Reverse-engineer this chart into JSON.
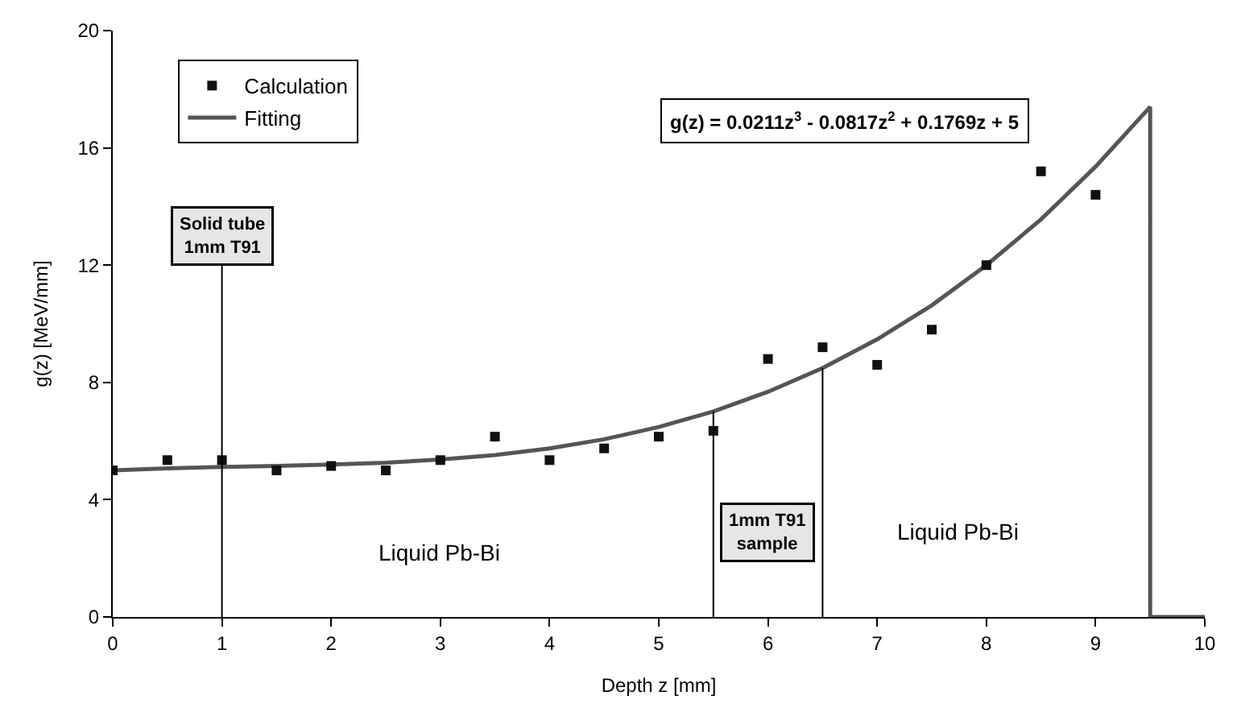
{
  "chart_data": {
    "type": "scatter",
    "xlabel": "Depth z [mm]",
    "ylabel": "g(z) [MeV/mm]",
    "xlim": [
      0,
      10
    ],
    "xticks": [
      0,
      1,
      2,
      3,
      4,
      5,
      6,
      7,
      8,
      9,
      10
    ],
    "ylim": [
      0,
      20
    ],
    "yticks": [
      0,
      4,
      8,
      12,
      16,
      20
    ],
    "legend": "top left",
    "series": [
      {
        "name": "Calculation",
        "marker": "square",
        "color": "#111111",
        "x": [
          0,
          0.5,
          1,
          1.5,
          2,
          2.5,
          3,
          3.5,
          4,
          4.5,
          5,
          5.5,
          6,
          6.5,
          7,
          7.5,
          8,
          8.5,
          9
        ],
        "values": [
          5.0,
          5.35,
          5.35,
          5.0,
          5.15,
          5.0,
          5.35,
          6.15,
          5.35,
          5.75,
          6.15,
          6.35,
          8.8,
          9.2,
          8.6,
          9.8,
          12.0,
          15.2,
          14.4
        ]
      },
      {
        "name": "Fitting",
        "type": "line",
        "marker": "none",
        "line_style": "solid",
        "color": "#555555",
        "x": [
          0,
          0.5,
          1,
          1.5,
          2,
          2.5,
          3,
          3.5,
          4,
          4.5,
          5,
          5.5,
          6,
          6.5,
          7,
          7.5,
          8,
          8.5,
          9,
          9.5,
          9.5,
          10
        ],
        "values": [
          5.0,
          5.07,
          5.12,
          5.15,
          5.2,
          5.26,
          5.37,
          5.52,
          5.75,
          6.06,
          6.48,
          7.01,
          7.68,
          8.49,
          9.47,
          10.63,
          12.0,
          13.56,
          15.36,
          17.4,
          0,
          0
        ]
      }
    ],
    "ref_lines": [
      {
        "axis": "x",
        "value": 1,
        "label": "Solid tube\n1mm T91",
        "color": "#000000"
      },
      {
        "axis": "x",
        "value": 5.5,
        "color": "#000000"
      },
      {
        "axis": "x",
        "value": 6.5,
        "color": "#000000"
      }
    ],
    "annotations": [
      "g(z) = 0.0211z$^{3}$ - 0.0817z$^{2}$ + 0.1769z + 5",
      "1mm T91\nsample",
      "Liquid Pb-Bi",
      "Liquid Pb-Bi"
    ]
  }
}
